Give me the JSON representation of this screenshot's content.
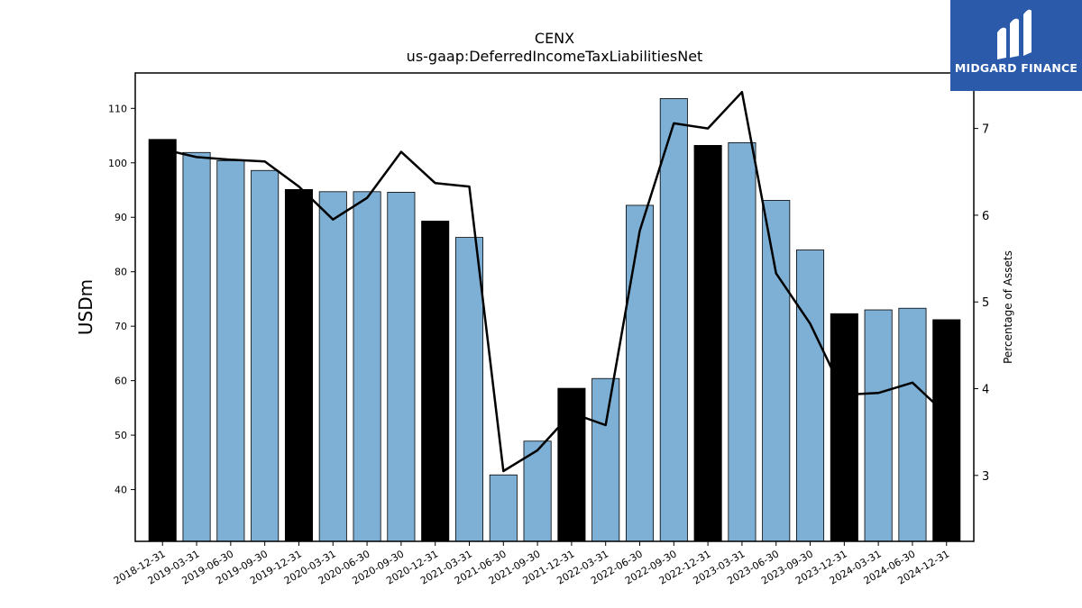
{
  "chart_data": {
    "type": "bar",
    "title": "CENX",
    "subtitle": "us-gaap:DeferredIncomeTaxLiabilitiesNet",
    "ylabel": "USDm",
    "y2label": "Percentage of Assets",
    "ylim": [
      30.5,
      116.5
    ],
    "y2lim": [
      2.24,
      7.64
    ],
    "yticks": [
      40,
      50,
      60,
      70,
      80,
      90,
      100,
      110
    ],
    "y2ticks": [
      3,
      4,
      5,
      6,
      7
    ],
    "categories": [
      "2018-12-31",
      "2019-03-31",
      "2019-06-30",
      "2019-09-30",
      "2019-12-31",
      "2020-03-31",
      "2020-06-30",
      "2020-09-30",
      "2020-12-31",
      "2021-03-31",
      "2021-06-30",
      "2021-09-30",
      "2021-12-31",
      "2022-03-31",
      "2022-06-30",
      "2022-09-30",
      "2022-12-31",
      "2023-03-31",
      "2023-06-30",
      "2023-09-30",
      "2023-12-31",
      "2024-03-31",
      "2024-06-30",
      "2024-12-31"
    ],
    "series": [
      {
        "values": [
          104.3,
          101.9,
          100.4,
          98.6,
          95.1,
          94.7,
          94.7,
          94.6,
          89.3,
          86.3,
          42.7,
          48.9,
          58.6,
          60.4,
          92.2,
          111.8,
          103.2,
          103.7,
          93.1,
          84.0,
          72.3,
          73.0,
          73.3,
          71.2
        ]
      },
      {
        "axis": "right",
        "values": [
          6.76,
          6.67,
          6.64,
          6.62,
          6.33,
          5.95,
          6.2,
          6.73,
          6.37,
          6.33,
          3.05,
          3.29,
          3.72,
          3.58,
          5.82,
          7.06,
          7.0,
          7.42,
          5.33,
          4.75,
          3.93,
          3.95,
          4.07,
          3.7
        ]
      }
    ],
    "bar_colors": {
      "year_end": "#000000",
      "quarter": "#7eb0d5"
    },
    "year_end_flags": [
      true,
      false,
      false,
      false,
      true,
      false,
      false,
      false,
      true,
      false,
      false,
      false,
      true,
      false,
      false,
      false,
      true,
      false,
      false,
      false,
      true,
      false,
      false,
      true
    ],
    "line_color": "#000000"
  },
  "logo": {
    "text": "MIDGARD FINANCE",
    "icon": "midgard-logo-icon",
    "color": "#2b5aab"
  }
}
